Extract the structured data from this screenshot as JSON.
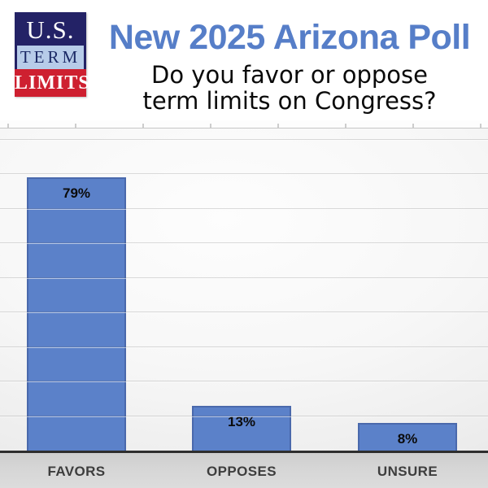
{
  "logo": {
    "line1": "U.S.",
    "line2": "TERM",
    "line3": "LIMITS",
    "navy": "#232266",
    "light_blue": "#b7cce9",
    "red": "#ce2030"
  },
  "header": {
    "title": "New 2025 Arizona Poll",
    "title_color": "#567ec8",
    "subtitle_line1": "Do you favor or oppose",
    "subtitle_line2": "term limits on Congress?"
  },
  "chart_data": {
    "type": "bar",
    "title": "New 2025 Arizona Poll",
    "subtitle": "Do you favor or oppose term limits on Congress?",
    "categories": [
      "FAVORS",
      "OPPOSES",
      "UNSURE"
    ],
    "values": [
      79,
      13,
      8
    ],
    "data_labels": [
      "79%",
      "13%",
      "8%"
    ],
    "xlabel": "",
    "ylabel": "",
    "ylim": [
      0,
      93
    ],
    "gridline_step": 10,
    "grid": true,
    "legend": false,
    "bar_color": "#5b81c9",
    "bar_border_color": "#4a69ac",
    "label_color": "#0b0b0b",
    "axis_label_color": "#3d3d3d",
    "plot_bg": "gray-gradient"
  }
}
